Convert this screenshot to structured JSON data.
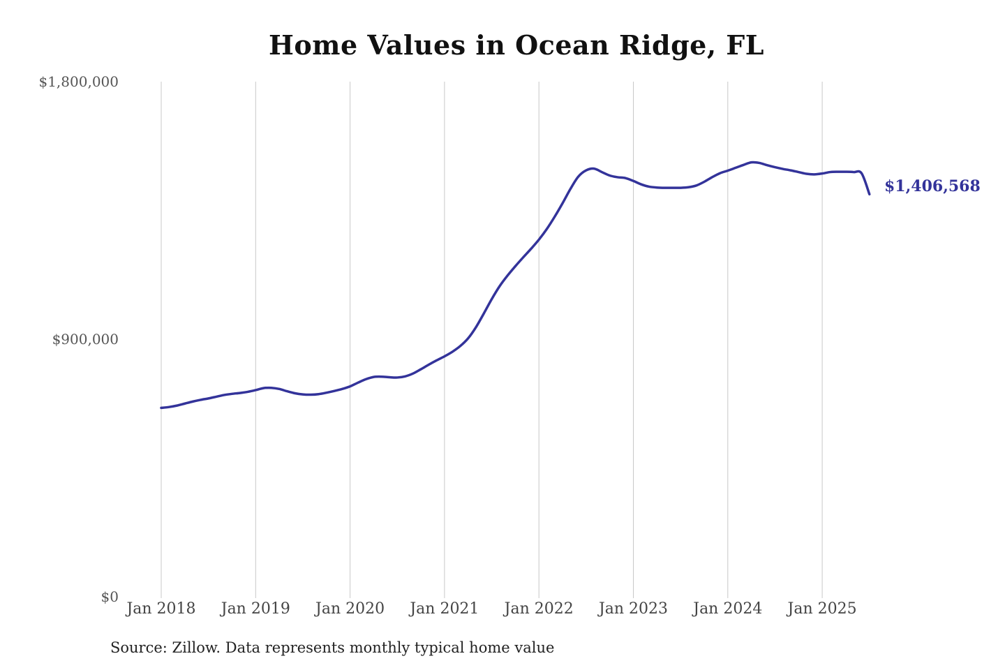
{
  "chart_data": {
    "type": "line",
    "title": "Home Values in Ocean Ridge, FL",
    "source": "Source: Zillow. Data represents monthly typical home value",
    "ylim": [
      0,
      1800000
    ],
    "y_ticks": [
      {
        "value": 0,
        "label": "$0"
      },
      {
        "value": 900000,
        "label": "$900,000"
      },
      {
        "value": 1800000,
        "label": "$1,800,000"
      }
    ],
    "x_ticks": [
      {
        "value": "2018-01",
        "label": "Jan 2018"
      },
      {
        "value": "2019-01",
        "label": "Jan 2019"
      },
      {
        "value": "2020-01",
        "label": "Jan 2020"
      },
      {
        "value": "2021-01",
        "label": "Jan 2021"
      },
      {
        "value": "2022-01",
        "label": "Jan 2022"
      },
      {
        "value": "2023-01",
        "label": "Jan 2023"
      },
      {
        "value": "2024-01",
        "label": "Jan 2024"
      },
      {
        "value": "2025-01",
        "label": "Jan 2025"
      }
    ],
    "grid": {
      "vertical": true,
      "horizontal": false
    },
    "series_color": "#33339a",
    "end_label": "$1,406,568",
    "series": [
      {
        "x": [
          "2018-01",
          "2018-02",
          "2018-03",
          "2018-04",
          "2018-05",
          "2018-06",
          "2018-07",
          "2018-08",
          "2018-09",
          "2018-10",
          "2018-11",
          "2018-12",
          "2019-01",
          "2019-02",
          "2019-03",
          "2019-04",
          "2019-05",
          "2019-06",
          "2019-07",
          "2019-08",
          "2019-09",
          "2019-10",
          "2019-11",
          "2019-12",
          "2020-01",
          "2020-02",
          "2020-03",
          "2020-04",
          "2020-05",
          "2020-06",
          "2020-07",
          "2020-08",
          "2020-09",
          "2020-10",
          "2020-11",
          "2020-12",
          "2021-01",
          "2021-02",
          "2021-03",
          "2021-04",
          "2021-05",
          "2021-06",
          "2021-07",
          "2021-08",
          "2021-09",
          "2021-10",
          "2021-11",
          "2021-12",
          "2022-01",
          "2022-02",
          "2022-03",
          "2022-04",
          "2022-05",
          "2022-06",
          "2022-07",
          "2022-08",
          "2022-09",
          "2022-10",
          "2022-11",
          "2022-12",
          "2023-01",
          "2023-02",
          "2023-03",
          "2023-04",
          "2023-05",
          "2023-06",
          "2023-07",
          "2023-08",
          "2023-09",
          "2023-10",
          "2023-11",
          "2023-12",
          "2024-01",
          "2024-02",
          "2024-03",
          "2024-04",
          "2024-05",
          "2024-06",
          "2024-07",
          "2024-08",
          "2024-09",
          "2024-10",
          "2024-11",
          "2024-12",
          "2025-01",
          "2025-02",
          "2025-03",
          "2025-04",
          "2025-05",
          "2025-06",
          "2025-07"
        ],
        "values": [
          660000,
          663000,
          668000,
          675000,
          682000,
          688000,
          693000,
          699000,
          705000,
          709000,
          712000,
          716000,
          722000,
          729000,
          730000,
          726000,
          718000,
          711000,
          707000,
          706000,
          708000,
          713000,
          719000,
          726000,
          735000,
          748000,
          760000,
          768000,
          769000,
          767000,
          766000,
          770000,
          780000,
          795000,
          811000,
          826000,
          840000,
          856000,
          876000,
          903000,
          942000,
          990000,
          1040000,
          1085000,
          1122000,
          1155000,
          1186000,
          1216000,
          1248000,
          1285000,
          1328000,
          1375000,
          1425000,
          1468000,
          1490000,
          1496000,
          1484000,
          1472000,
          1466000,
          1463000,
          1453000,
          1441000,
          1433000,
          1430000,
          1429000,
          1429000,
          1429000,
          1431000,
          1437000,
          1450000,
          1466000,
          1480000,
          1489000,
          1499000,
          1509000,
          1518000,
          1516000,
          1508000,
          1501000,
          1495000,
          1490000,
          1484000,
          1478000,
          1476000,
          1479000,
          1484000,
          1485000,
          1485000,
          1484000,
          1480000,
          1406568
        ]
      }
    ]
  }
}
